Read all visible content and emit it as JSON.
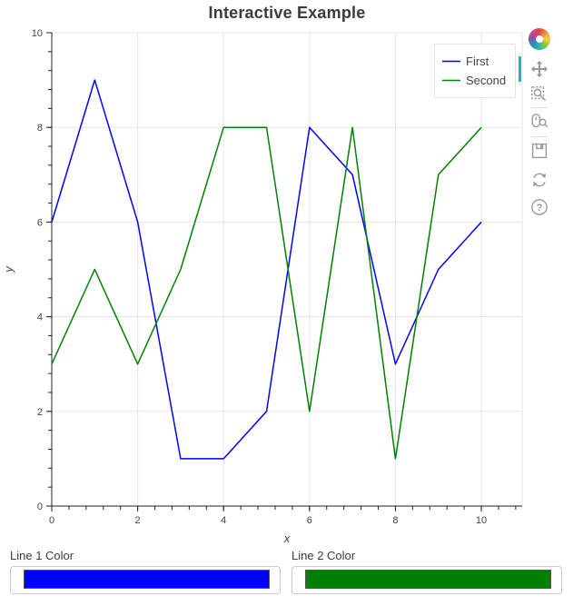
{
  "title": "Interactive Example",
  "chart_data": {
    "type": "line",
    "title": "Interactive Example",
    "x": [
      0,
      1,
      2,
      3,
      4,
      5,
      6,
      7,
      8,
      9,
      10
    ],
    "series": [
      {
        "name": "First",
        "color": "#0000ff",
        "values": [
          6,
          9,
          6,
          1,
          1,
          2,
          8,
          7,
          3,
          5,
          6
        ]
      },
      {
        "name": "Second",
        "color": "#008000",
        "values": [
          3,
          5,
          3,
          5,
          8,
          8,
          2,
          8,
          1,
          7,
          8
        ]
      }
    ],
    "xlabel": "x",
    "ylabel": "y",
    "xlim": [
      0,
      10.95
    ],
    "ylim": [
      0,
      10
    ],
    "x_ticks": [
      0,
      2,
      4,
      6,
      8,
      10
    ],
    "y_ticks": [
      0,
      2,
      4,
      6,
      8,
      10
    ],
    "minor_tick_step": 0.4,
    "grid": true,
    "legend_position": "top_right",
    "colors": {
      "grid": "#e5e5e5",
      "axis": "#222222",
      "tick_label": "#444444",
      "outline": "#e5e5e5",
      "legend_border": "#e5e5e5",
      "legend_bg": "#ffffff",
      "title": "#3b3b3b"
    }
  },
  "toolbar": {
    "tools": [
      {
        "name": "pan",
        "active": true
      },
      {
        "name": "box zoom",
        "active": false
      },
      {
        "name": "wheel zoom",
        "active": false
      },
      {
        "name": "save",
        "active": false
      },
      {
        "name": "reset",
        "active": false
      },
      {
        "name": "help",
        "active": false
      }
    ],
    "active_indicator_color": "#26aae1",
    "icon_color": "#9a9a9a"
  },
  "widgets": [
    {
      "label": "Line 1 Color",
      "value": "#0000ff"
    },
    {
      "label": "Line 2 Color",
      "value": "#008000"
    }
  ]
}
